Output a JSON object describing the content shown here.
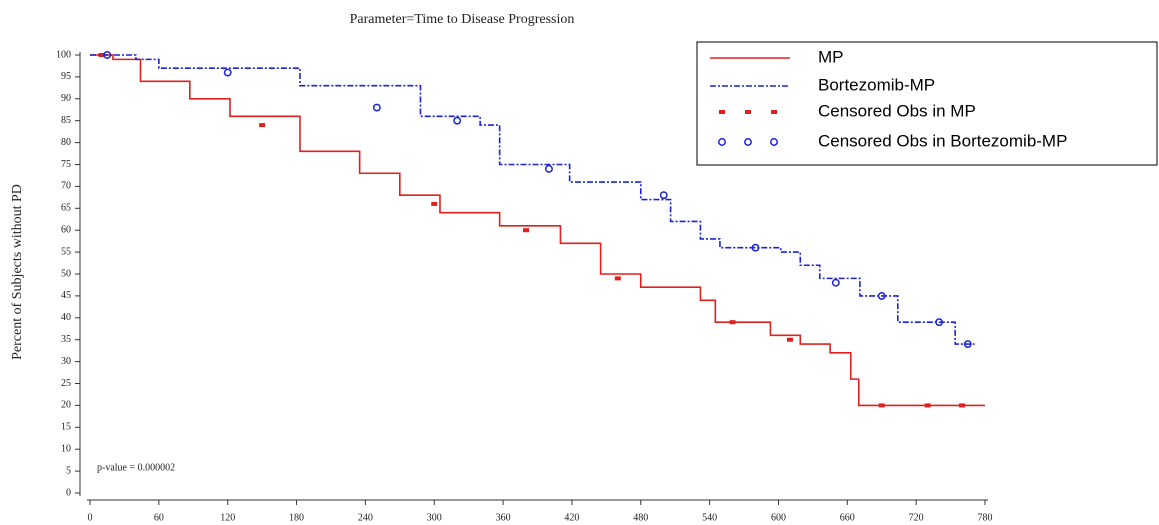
{
  "chart_data": {
    "type": "step",
    "title": "Parameter=Time to Disease Progression",
    "y_label": "Percent of Subjects without PD",
    "annotation": "p-value = 0.000002",
    "xlim": [
      0,
      780
    ],
    "xticks": [
      0,
      60,
      120,
      180,
      240,
      300,
      360,
      420,
      480,
      540,
      600,
      660,
      720,
      780
    ],
    "ylim": [
      0,
      100
    ],
    "yticks": [
      0,
      5,
      10,
      15,
      20,
      25,
      30,
      35,
      40,
      45,
      50,
      55,
      60,
      65,
      70,
      75,
      80,
      85,
      90,
      95,
      100
    ],
    "series": [
      {
        "name": "MP",
        "color": "#e0201c",
        "style": "solid",
        "x": [
          0,
          20,
          44,
          87,
          122,
          183,
          235,
          270,
          305,
          357,
          410,
          445,
          480,
          532,
          545,
          593,
          619,
          645,
          663,
          670,
          780
        ],
        "values": [
          100,
          99,
          94,
          90,
          86,
          78,
          73,
          68,
          64,
          61,
          57,
          50,
          47,
          44,
          39,
          36,
          34,
          32,
          26,
          20,
          20
        ]
      },
      {
        "name": "Bortezomib-MP",
        "color": "#1a22d8",
        "style": "dashed",
        "x": [
          0,
          40,
          60,
          183,
          288,
          340,
          357,
          418,
          480,
          506,
          532,
          549,
          602,
          619,
          636,
          671,
          704,
          754,
          771
        ],
        "values": [
          100,
          99,
          97,
          93,
          86,
          84,
          75,
          71,
          67,
          62,
          58,
          56,
          55,
          52,
          49,
          45,
          39,
          34,
          34
        ]
      },
      {
        "name": "Censored Obs in MP",
        "color": "#e0201c",
        "marker": "square",
        "x": [
          10,
          150,
          300,
          380,
          460,
          560,
          610,
          690,
          730,
          760
        ],
        "values": [
          100,
          84,
          66,
          60,
          49,
          39,
          35,
          20,
          20,
          20
        ]
      },
      {
        "name": "Censored Obs in Bortezomib-MP",
        "color": "#1a22d8",
        "marker": "circle",
        "x": [
          15,
          120,
          250,
          320,
          400,
          500,
          580,
          650,
          690,
          740,
          765
        ],
        "values": [
          100,
          96,
          88,
          85,
          74,
          68,
          56,
          48,
          45,
          39,
          34
        ]
      }
    ]
  }
}
